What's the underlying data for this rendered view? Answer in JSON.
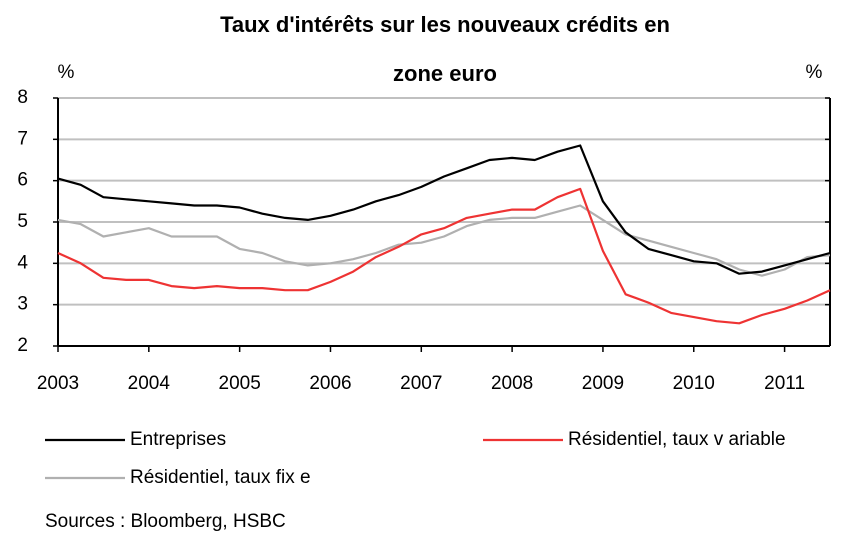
{
  "chart_data": {
    "type": "line",
    "title": [
      "Taux d'intérêts sur les nouveaux crédits en",
      "zone euro"
    ],
    "ylabel": "%",
    "y2label": "%",
    "x": [
      2003,
      2003.25,
      2003.5,
      2003.75,
      2004,
      2004.25,
      2004.5,
      2004.75,
      2005,
      2005.25,
      2005.5,
      2005.75,
      2006,
      2006.25,
      2006.5,
      2006.75,
      2007,
      2007.25,
      2007.5,
      2007.75,
      2008,
      2008.25,
      2008.5,
      2008.75,
      2009,
      2009.25,
      2009.5,
      2009.75,
      2010,
      2010.25,
      2010.5,
      2010.75,
      2011,
      2011.25,
      2011.5
    ],
    "series": [
      {
        "name": "Entreprises",
        "color": "#000000",
        "values": [
          6.05,
          5.9,
          5.6,
          5.55,
          5.5,
          5.45,
          5.4,
          5.4,
          5.35,
          5.2,
          5.1,
          5.05,
          5.15,
          5.3,
          5.5,
          5.65,
          5.85,
          6.1,
          6.3,
          6.5,
          6.55,
          6.5,
          6.7,
          6.85,
          5.5,
          4.75,
          4.35,
          4.2,
          4.05,
          4.0,
          3.75,
          3.8,
          3.95,
          4.1,
          4.25
        ]
      },
      {
        "name": "Résidentiel, taux v ariable",
        "color": "#ee3333",
        "values": [
          4.25,
          4.0,
          3.65,
          3.6,
          3.6,
          3.45,
          3.4,
          3.45,
          3.4,
          3.4,
          3.35,
          3.35,
          3.55,
          3.8,
          4.15,
          4.4,
          4.7,
          4.85,
          5.1,
          5.2,
          5.3,
          5.3,
          5.6,
          5.8,
          4.3,
          3.25,
          3.05,
          2.8,
          2.7,
          2.6,
          2.55,
          2.75,
          2.9,
          3.1,
          3.35
        ]
      },
      {
        "name": "Résidentiel, taux fix e",
        "color": "#b0b0b0",
        "values": [
          5.05,
          4.95,
          4.65,
          4.75,
          4.85,
          4.65,
          4.65,
          4.65,
          4.35,
          4.25,
          4.05,
          3.95,
          4.0,
          4.1,
          4.25,
          4.45,
          4.5,
          4.65,
          4.9,
          5.05,
          5.1,
          5.1,
          5.25,
          5.4,
          5.05,
          4.7,
          4.55,
          4.4,
          4.25,
          4.1,
          3.85,
          3.7,
          3.85,
          4.15,
          4.2
        ]
      }
    ],
    "xlim": [
      2003,
      2011.5
    ],
    "xticks": [
      2003,
      2004,
      2005,
      2006,
      2007,
      2008,
      2009,
      2010,
      2011
    ],
    "ylim": [
      2,
      8
    ],
    "yticks": [
      2,
      3,
      4,
      5,
      6,
      7,
      8
    ],
    "grid": true,
    "source": "Sources : Bloomberg, HSBC"
  }
}
